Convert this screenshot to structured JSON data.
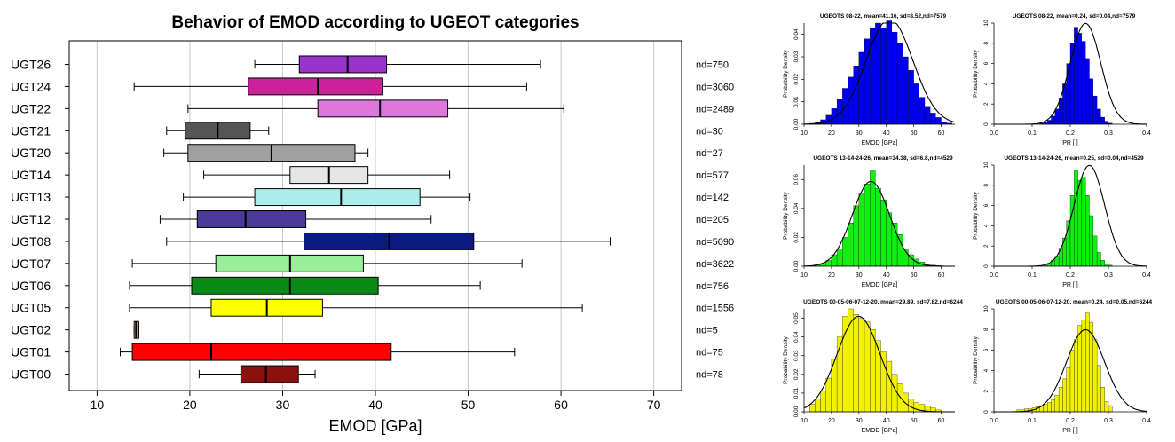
{
  "chart_data": [
    {
      "type": "boxplot",
      "orientation": "horizontal",
      "title": "Behavior of EMOD according to UGEOT categories",
      "xlabel": "EMOD [GPa]",
      "xlim": [
        7,
        73
      ],
      "xticks": [
        10,
        20,
        30,
        40,
        50,
        60,
        70
      ],
      "grid": true,
      "categories": [
        {
          "label": "UGT26",
          "whisker_lo": 27.0,
          "q1": 31.8,
          "median": 37.0,
          "q3": 41.2,
          "whisker_hi": 57.8,
          "nd_label": "nd=750",
          "color": "#9933cc"
        },
        {
          "label": "UGT24",
          "whisker_lo": 14.0,
          "q1": 26.3,
          "median": 33.8,
          "q3": 40.8,
          "whisker_hi": 56.3,
          "nd_label": "nd=3060",
          "color": "#cc2299"
        },
        {
          "label": "UGT22",
          "whisker_lo": 19.8,
          "q1": 33.8,
          "median": 40.5,
          "q3": 47.8,
          "whisker_hi": 60.3,
          "nd_label": "nd=2489",
          "color": "#dd77dd"
        },
        {
          "label": "UGT21",
          "whisker_lo": 17.5,
          "q1": 19.5,
          "median": 23.0,
          "q3": 26.5,
          "whisker_hi": 28.5,
          "nd_label": "nd=30",
          "color": "#555555"
        },
        {
          "label": "UGT20",
          "whisker_lo": 17.2,
          "q1": 19.8,
          "median": 28.8,
          "q3": 37.8,
          "whisker_hi": 39.2,
          "nd_label": "nd=27",
          "color": "#a0a0a0"
        },
        {
          "label": "UGT14",
          "whisker_lo": 21.5,
          "q1": 30.8,
          "median": 35.0,
          "q3": 39.2,
          "whisker_hi": 48.0,
          "nd_label": "nd=577",
          "color": "#e6e6e6"
        },
        {
          "label": "UGT13",
          "whisker_lo": 19.3,
          "q1": 27.0,
          "median": 36.3,
          "q3": 44.8,
          "whisker_hi": 50.2,
          "nd_label": "nd=142",
          "color": "#aaeeee"
        },
        {
          "label": "UGT12",
          "whisker_lo": 16.8,
          "q1": 20.8,
          "median": 26.0,
          "q3": 32.5,
          "whisker_hi": 46.0,
          "nd_label": "nd=205",
          "color": "#4b3a9a"
        },
        {
          "label": "UGT08",
          "whisker_lo": 17.5,
          "q1": 32.3,
          "median": 41.5,
          "q3": 50.6,
          "whisker_hi": 65.3,
          "nd_label": "nd=5090",
          "color": "#0b1a7f"
        },
        {
          "label": "UGT07",
          "whisker_lo": 13.8,
          "q1": 22.8,
          "median": 30.8,
          "q3": 38.7,
          "whisker_hi": 55.8,
          "nd_label": "nd=3622",
          "color": "#99ee99"
        },
        {
          "label": "UGT06",
          "whisker_lo": 13.5,
          "q1": 20.2,
          "median": 30.8,
          "q3": 40.3,
          "whisker_hi": 51.3,
          "nd_label": "nd=756",
          "color": "#0a8a14"
        },
        {
          "label": "UGT05",
          "whisker_lo": 13.5,
          "q1": 22.3,
          "median": 28.3,
          "q3": 34.3,
          "whisker_hi": 62.3,
          "nd_label": "nd=1556",
          "color": "#ffff00"
        },
        {
          "label": "UGT02",
          "whisker_lo": 14.0,
          "q1": 14.0,
          "median": 14.2,
          "q3": 14.5,
          "whisker_hi": 14.5,
          "nd_label": "nd=5",
          "color": "#f4c9a0"
        },
        {
          "label": "UGT01",
          "whisker_lo": 12.5,
          "q1": 13.8,
          "median": 22.3,
          "q3": 41.7,
          "whisker_hi": 55.0,
          "nd_label": "nd=75",
          "color": "#ff0000"
        },
        {
          "label": "UGT00",
          "whisker_lo": 21.0,
          "q1": 25.5,
          "median": 28.2,
          "q3": 31.7,
          "whisker_hi": 33.5,
          "nd_label": "nd=78",
          "color": "#8b1010"
        }
      ]
    },
    {
      "type": "histogram",
      "title": "UGEOTS 08-22, mean=41.16, sd=8.52,nd=7579",
      "xlabel": "EMOD [GPa]",
      "ylabel": "Probability Density",
      "xlim": [
        10,
        65
      ],
      "ylim": [
        0,
        0.045
      ],
      "xticks": [
        10,
        20,
        30,
        40,
        50,
        60
      ],
      "yticks": [
        0.0,
        0.01,
        0.02,
        0.03,
        0.04
      ],
      "ytick_labels": [
        "0.00",
        "0.01",
        "0.02",
        "0.03",
        "0.04"
      ],
      "bin_start": 10,
      "bin_width": 2,
      "densities": [
        0,
        0.0004,
        0.001,
        0.002,
        0.004,
        0.007,
        0.011,
        0.016,
        0.021,
        0.026,
        0.032,
        0.038,
        0.043,
        0.045,
        0.043,
        0.046,
        0.041,
        0.036,
        0.03,
        0.024,
        0.018,
        0.012,
        0.008,
        0.005,
        0.003,
        0.001,
        0.0005
      ],
      "mean": 41.16,
      "sd": 8.52,
      "color": "#0000ee"
    },
    {
      "type": "histogram",
      "title": "UGEOTS 08-22, mean=0.24, sd=0.04,nd=7579",
      "xlabel": "PR [ ]",
      "ylabel": "Probability Density",
      "xlim": [
        0,
        0.4
      ],
      "ylim": [
        0,
        10
      ],
      "xticks": [
        0.0,
        0.1,
        0.2,
        0.3,
        0.4
      ],
      "xtick_labels": [
        "0.0",
        "0.1",
        "0.2",
        "0.3",
        "0.4"
      ],
      "yticks": [
        0,
        2,
        4,
        6,
        8,
        10
      ],
      "ytick_labels": [
        "0",
        "2",
        "4",
        "6",
        "8",
        "10"
      ],
      "bin_start": 0.12,
      "bin_width": 0.01,
      "densities": [
        0.1,
        0.2,
        0.4,
        0.8,
        1.5,
        2.6,
        4.0,
        6.0,
        8.0,
        9.6,
        9.0,
        8.2,
        6.5,
        4.5,
        2.8,
        1.5,
        0.7,
        0.3,
        0.1
      ],
      "mean": 0.24,
      "sd": 0.04,
      "color": "#0000ee"
    },
    {
      "type": "histogram",
      "title": "UGEOTS 13-14-24-26, mean=34.38, sd=6.8,nd=4529",
      "xlabel": "EMOD [GPa]",
      "ylabel": "Probability Density",
      "xlim": [
        10,
        65
      ],
      "ylim": [
        0,
        0.07
      ],
      "xticks": [
        10,
        20,
        30,
        40,
        50,
        60
      ],
      "yticks": [
        0.0,
        0.02,
        0.04,
        0.06
      ],
      "ytick_labels": [
        "0.00",
        "0.02",
        "0.04",
        "0.06"
      ],
      "bin_start": 12,
      "bin_width": 2,
      "densities": [
        0.0004,
        0.001,
        0.002,
        0.004,
        0.008,
        0.012,
        0.02,
        0.03,
        0.042,
        0.05,
        0.057,
        0.066,
        0.054,
        0.046,
        0.037,
        0.03,
        0.022,
        0.012,
        0.008,
        0.005,
        0.003,
        0.001,
        0.0008,
        0.0004
      ],
      "mean": 34.38,
      "sd": 6.8,
      "color": "#11ee11"
    },
    {
      "type": "histogram",
      "title": "UGEOTS 13-14-24-26, mean=0.25, sd=0.04,nd=4529",
      "xlabel": "PR [ ]",
      "ylabel": "Probability Density",
      "xlim": [
        0,
        0.4
      ],
      "ylim": [
        0,
        10
      ],
      "xticks": [
        0.0,
        0.1,
        0.2,
        0.3,
        0.4
      ],
      "xtick_labels": [
        "0.0",
        "0.1",
        "0.2",
        "0.3",
        "0.4"
      ],
      "yticks": [
        0,
        2,
        4,
        6,
        8,
        10
      ],
      "ytick_labels": [
        "0",
        "2",
        "4",
        "6",
        "8",
        "10"
      ],
      "bin_start": 0.13,
      "bin_width": 0.01,
      "densities": [
        0.1,
        0.3,
        0.6,
        1.0,
        1.8,
        2.8,
        4.5,
        7.0,
        9.5,
        8.5,
        8.8,
        7.0,
        5.0,
        3.0,
        1.4,
        0.6,
        0.2,
        0.1
      ],
      "mean": 0.25,
      "sd": 0.04,
      "color": "#11ee11"
    },
    {
      "type": "histogram",
      "title": "UGEOTS 00-05-06-07-12-20, mean=29.89, sd=7.82,nd=6244",
      "xlabel": "EMOD [GPa]",
      "ylabel": "Probability Density",
      "xlim": [
        10,
        65
      ],
      "ylim": [
        0,
        0.055
      ],
      "xticks": [
        10,
        20,
        30,
        40,
        50,
        60
      ],
      "yticks": [
        0.0,
        0.01,
        0.02,
        0.03,
        0.04,
        0.05
      ],
      "ytick_labels": [
        "0.00",
        "0.01",
        "0.02",
        "0.03",
        "0.04",
        "0.05"
      ],
      "bin_start": 12,
      "bin_width": 2,
      "densities": [
        0.004,
        0.007,
        0.011,
        0.018,
        0.028,
        0.04,
        0.051,
        0.055,
        0.052,
        0.05,
        0.048,
        0.044,
        0.038,
        0.032,
        0.027,
        0.02,
        0.015,
        0.01,
        0.007,
        0.005,
        0.004,
        0.003,
        0.002,
        0.001
      ],
      "mean": 29.89,
      "sd": 7.82,
      "color": "#f2f200"
    },
    {
      "type": "histogram",
      "title": "UGEOTS 00-05-06-07-12-20, mean=0.24, sd=0.05,nd=6244",
      "xlabel": "PR [ ]",
      "ylabel": "Probability Density",
      "xlim": [
        0,
        0.4
      ],
      "ylim": [
        0,
        10
      ],
      "xticks": [
        0.0,
        0.1,
        0.2,
        0.3,
        0.4
      ],
      "xtick_labels": [
        "0.0",
        "0.1",
        "0.2",
        "0.3",
        "0.4"
      ],
      "yticks": [
        0,
        2,
        4,
        6,
        8,
        10
      ],
      "ytick_labels": [
        "0",
        "2",
        "4",
        "6",
        "8",
        "10"
      ],
      "bin_start": 0.06,
      "bin_width": 0.01,
      "densities": [
        0.2,
        0.2,
        0.3,
        0.3,
        0.4,
        0.5,
        0.6,
        0.7,
        0.9,
        1.2,
        1.6,
        2.4,
        3.2,
        4.3,
        6.0,
        7.0,
        8.4,
        8.9,
        9.6,
        8.7,
        7.0,
        4.5,
        2.4,
        1.0,
        0.6
      ],
      "mean": 0.24,
      "sd": 0.05,
      "color": "#f2f200"
    }
  ]
}
